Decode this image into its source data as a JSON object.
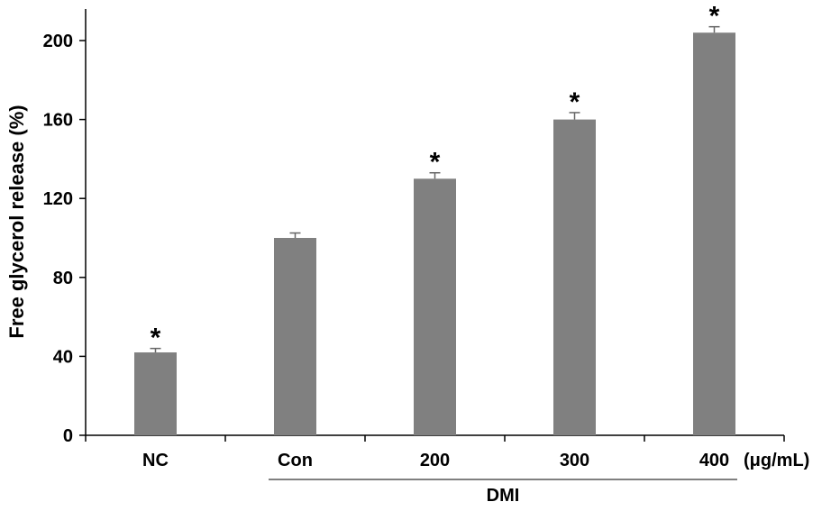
{
  "chart_data": {
    "type": "bar",
    "categories": [
      "NC",
      "Con",
      "200",
      "300",
      "400"
    ],
    "values": [
      42,
      100,
      130,
      160,
      204
    ],
    "errors": [
      2,
      2.5,
      3,
      3.5,
      3
    ],
    "significance": [
      "*",
      "",
      "*",
      "*",
      "*"
    ],
    "ylabel": "Free glycerol release (%)",
    "xlabel": "",
    "unit_label": "(μg/mL)",
    "group_label": "DMI",
    "ylim": [
      0,
      215
    ],
    "yticks": [
      0,
      40,
      80,
      120,
      160,
      200
    ],
    "bar_color": "#808080",
    "grid": false
  }
}
